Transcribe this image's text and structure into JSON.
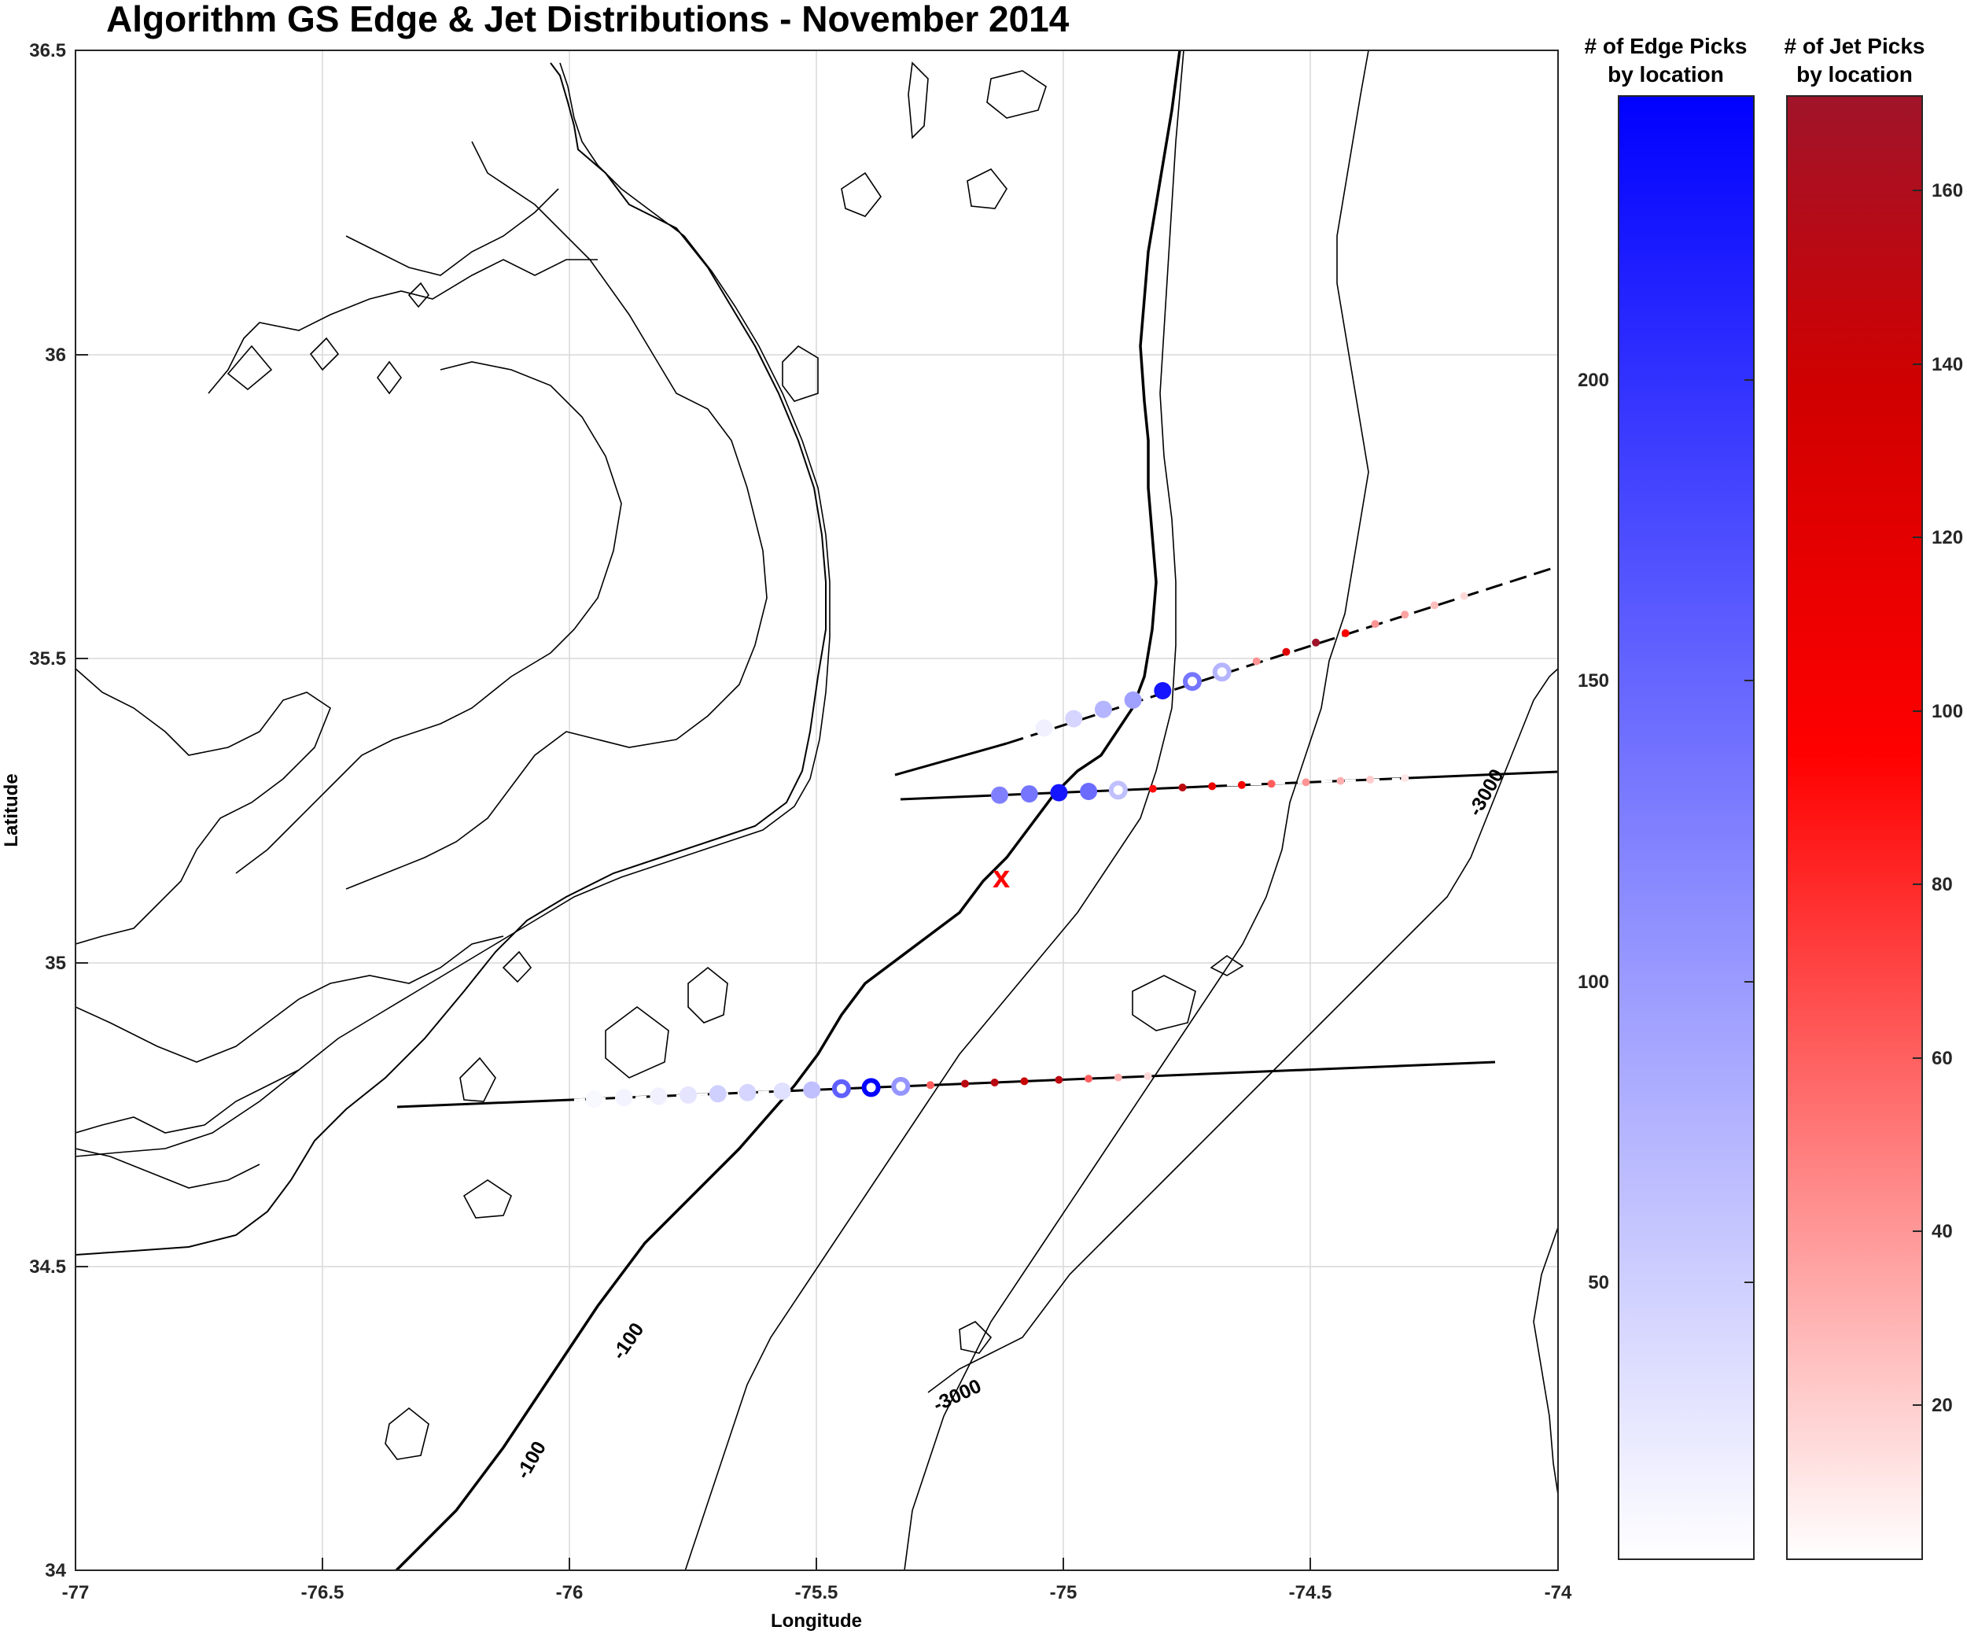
{
  "title": "Algorithm GS Edge & Jet Distributions - November 2014",
  "axes": {
    "xlabel": "Longitude",
    "ylabel": "Latitude",
    "xlim": [
      -77,
      -74
    ],
    "ylim": [
      34,
      36.5
    ],
    "xticks": [
      "-77",
      "-76.5",
      "-76",
      "-75.5",
      "-75",
      "-74.5",
      "-74"
    ],
    "yticks": [
      "34",
      "34.5",
      "35",
      "35.5",
      "36",
      "36.5"
    ],
    "grid": true
  },
  "colorbars": {
    "edge": {
      "title_line1": "# of Edge Picks",
      "title_line2": "by location",
      "range": [
        1,
        240
      ],
      "ticks": [
        "50",
        "100",
        "150",
        "200"
      ],
      "colors": [
        "#ffffff",
        "#0000ff"
      ]
    },
    "jet": {
      "title_line1": "# of Jet Picks",
      "title_line2": "by location",
      "range": [
        1,
        170
      ],
      "ticks": [
        "20",
        "40",
        "60",
        "80",
        "100",
        "120",
        "140",
        "160"
      ],
      "colors": [
        "#ffffff",
        "#ff0000",
        "#cc0000",
        "#a0142a"
      ]
    }
  },
  "contour_labels": [
    "-100",
    "-100",
    "-3000",
    "-3000"
  ],
  "marker": {
    "label": "x",
    "color": "#ff0000",
    "lon": -75.12,
    "lat": 35.15
  },
  "chart_data": {
    "type": "map",
    "transects": [
      {
        "name": "north",
        "edge_picks": [
          {
            "lon": -75.04,
            "value": 15
          },
          {
            "lon": -74.98,
            "value": 40
          },
          {
            "lon": -74.92,
            "value": 70
          },
          {
            "lon": -74.86,
            "value": 90
          },
          {
            "lon": -74.8,
            "value": 220
          },
          {
            "lon": -74.74,
            "value": 130,
            "hollow": true
          },
          {
            "lon": -74.68,
            "value": 70,
            "hollow": true
          }
        ],
        "jet_picks": [
          {
            "lon": -74.61,
            "value": 40
          },
          {
            "lon": -74.55,
            "value": 120
          },
          {
            "lon": -74.49,
            "value": 170
          },
          {
            "lon": -74.43,
            "value": 100
          },
          {
            "lon": -74.37,
            "value": 40
          },
          {
            "lon": -74.31,
            "value": 35
          },
          {
            "lon": -74.25,
            "value": 25
          },
          {
            "lon": -74.19,
            "value": 15
          }
        ]
      },
      {
        "name": "middle",
        "edge_picks": [
          {
            "lon": -75.13,
            "value": 120
          },
          {
            "lon": -75.07,
            "value": 130
          },
          {
            "lon": -75.01,
            "value": 220
          },
          {
            "lon": -74.95,
            "value": 140
          },
          {
            "lon": -74.89,
            "value": 60,
            "hollow": true
          }
        ],
        "jet_picks": [
          {
            "lon": -74.82,
            "value": 90
          },
          {
            "lon": -74.76,
            "value": 150
          },
          {
            "lon": -74.7,
            "value": 110
          },
          {
            "lon": -74.64,
            "value": 100
          },
          {
            "lon": -74.58,
            "value": 60
          },
          {
            "lon": -74.51,
            "value": 40
          },
          {
            "lon": -74.44,
            "value": 30
          },
          {
            "lon": -74.38,
            "value": 20
          },
          {
            "lon": -74.31,
            "value": 10
          }
        ]
      },
      {
        "name": "south",
        "edge_picks": [
          {
            "lon": -75.95,
            "value": 8
          },
          {
            "lon": -75.89,
            "value": 12
          },
          {
            "lon": -75.82,
            "value": 15
          },
          {
            "lon": -75.76,
            "value": 25
          },
          {
            "lon": -75.7,
            "value": 45
          },
          {
            "lon": -75.64,
            "value": 40
          },
          {
            "lon": -75.57,
            "value": 30
          },
          {
            "lon": -75.51,
            "value": 60
          },
          {
            "lon": -75.45,
            "value": 150,
            "hollow": true
          },
          {
            "lon": -75.39,
            "value": 235,
            "hollow": true
          },
          {
            "lon": -75.33,
            "value": 100,
            "hollow": true
          }
        ],
        "jet_picks": [
          {
            "lon": -75.27,
            "value": 60
          },
          {
            "lon": -75.2,
            "value": 150
          },
          {
            "lon": -75.14,
            "value": 150
          },
          {
            "lon": -75.08,
            "value": 140
          },
          {
            "lon": -75.01,
            "value": 150
          },
          {
            "lon": -74.95,
            "value": 60
          },
          {
            "lon": -74.89,
            "value": 30
          },
          {
            "lon": -74.83,
            "value": 15
          }
        ]
      }
    ]
  }
}
